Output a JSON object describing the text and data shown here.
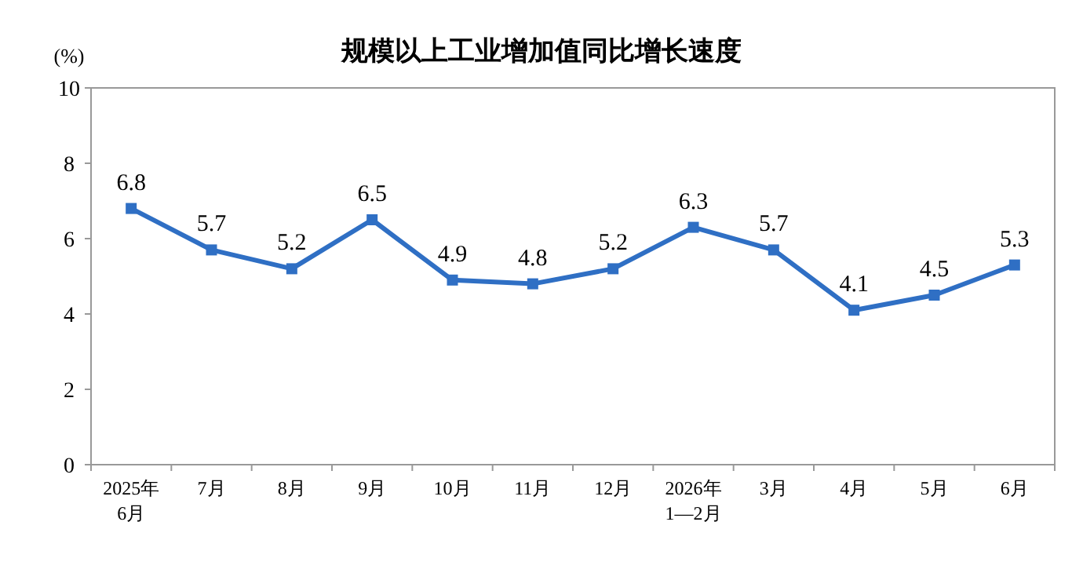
{
  "chart_data": {
    "type": "line",
    "title": "规模以上工业增加值同比增长速度",
    "ylabel": "(%)",
    "categories": [
      "2025年\n6月",
      "7月",
      "8月",
      "9月",
      "10月",
      "11月",
      "12月",
      "2026年\n1—2月",
      "3月",
      "4月",
      "5月",
      "6月"
    ],
    "values": [
      6.8,
      5.7,
      5.2,
      6.5,
      4.9,
      4.8,
      5.2,
      6.3,
      5.7,
      4.1,
      4.5,
      5.3
    ],
    "color": "#2f6fc4",
    "ylim": [
      0,
      10
    ],
    "yticks": [
      0,
      2,
      4,
      6,
      8,
      10
    ],
    "data_labels": true,
    "marker": "square",
    "line_style": "solid"
  }
}
